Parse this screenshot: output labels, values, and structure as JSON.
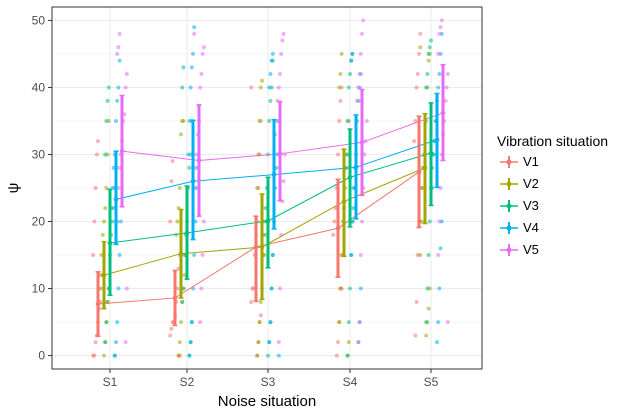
{
  "chart_data": {
    "type": "line",
    "title": "",
    "xlabel": "Noise situation",
    "ylabel": "ψ",
    "categories": [
      "S1",
      "S2",
      "S3",
      "S4",
      "S5"
    ],
    "ylim": [
      -2,
      52
    ],
    "yticks": [
      0,
      10,
      20,
      30,
      40,
      50
    ],
    "grid": true,
    "legend": {
      "title": "Vibration situation",
      "placement": "right"
    },
    "colors": {
      "V1": "#F8766D",
      "V2": "#A3A500",
      "V3": "#00BF7D",
      "V4": "#00B0F6",
      "V5": "#E76BF3",
      "panel_bg": "#FFFFFF",
      "grid": "#EBEBEB",
      "panel_border": "#333333"
    },
    "series": [
      {
        "name": "V1",
        "means": [
          7.7,
          8.6,
          16.2,
          19.0,
          27.4
        ],
        "ci_low": [
          2.9,
          4.5,
          8.1,
          11.7,
          19.1
        ],
        "ci_high": [
          12.5,
          12.7,
          20.8,
          26.3,
          35.7
        ]
      },
      {
        "name": "V2",
        "means": [
          12.0,
          15.2,
          16.2,
          23.0,
          28.0
        ],
        "ci_low": [
          7.0,
          8.6,
          8.4,
          14.8,
          19.7
        ],
        "ci_high": [
          17.0,
          21.8,
          24.1,
          30.8,
          36.1
        ]
      },
      {
        "name": "V3",
        "means": [
          16.8,
          18.3,
          20.1,
          26.6,
          30.2
        ],
        "ci_low": [
          9.0,
          11.4,
          13.1,
          19.2,
          22.4
        ],
        "ci_high": [
          24.8,
          25.3,
          26.6,
          33.8,
          37.7
        ]
      },
      {
        "name": "V4",
        "means": [
          23.3,
          26.0,
          27.0,
          28.1,
          32.2
        ],
        "ci_low": [
          16.6,
          17.3,
          18.9,
          20.4,
          25.1
        ],
        "ci_high": [
          30.5,
          35.1,
          35.2,
          35.9,
          39.1
        ]
      },
      {
        "name": "V5",
        "means": [
          30.5,
          29.1,
          30.1,
          31.8,
          36.2
        ],
        "ci_low": [
          22.2,
          20.8,
          23.1,
          23.9,
          29.1
        ],
        "ci_high": [
          38.8,
          37.4,
          37.9,
          39.7,
          43.4
        ]
      }
    ],
    "raw_points": [
      {
        "series": "V1",
        "x": "S1",
        "values": [
          0,
          0,
          2,
          3,
          5,
          7,
          8,
          10,
          12,
          15,
          20,
          25,
          30,
          32
        ]
      },
      {
        "series": "V1",
        "x": "S2",
        "values": [
          0,
          0,
          3,
          4,
          5,
          5,
          6,
          8,
          10,
          13,
          15,
          20,
          26,
          29
        ]
      },
      {
        "series": "V1",
        "x": "S3",
        "values": [
          0,
          2,
          5,
          6,
          8,
          10,
          10,
          15,
          18,
          20,
          25,
          30,
          35,
          40
        ]
      },
      {
        "series": "V1",
        "x": "S4",
        "values": [
          0,
          2,
          5,
          10,
          10,
          15,
          18,
          20,
          22,
          25,
          30,
          35,
          38,
          40
        ]
      },
      {
        "series": "V1",
        "x": "S5",
        "values": [
          3,
          8,
          15,
          20,
          20,
          25,
          28,
          30,
          32,
          35,
          40,
          42,
          45,
          48
        ]
      },
      {
        "series": "V2",
        "x": "S1",
        "values": [
          0,
          2,
          5,
          8,
          10,
          10,
          12,
          15,
          18,
          20,
          22,
          25,
          30,
          35
        ]
      },
      {
        "series": "V2",
        "x": "S2",
        "values": [
          0,
          2,
          5,
          8,
          10,
          12,
          15,
          18,
          20,
          22,
          25,
          33,
          35,
          35
        ]
      },
      {
        "series": "V2",
        "x": "S3",
        "values": [
          0,
          2,
          5,
          8,
          10,
          15,
          15,
          18,
          20,
          25,
          30,
          35,
          40,
          41
        ]
      },
      {
        "series": "V2",
        "x": "S4",
        "values": [
          0,
          2,
          5,
          10,
          15,
          20,
          22,
          25,
          28,
          30,
          35,
          40,
          42,
          45
        ]
      },
      {
        "series": "V2",
        "x": "S5",
        "values": [
          3,
          5,
          7,
          10,
          15,
          20,
          25,
          28,
          30,
          35,
          40,
          44,
          45,
          46
        ]
      },
      {
        "series": "V3",
        "x": "S1",
        "values": [
          0,
          2,
          5,
          8,
          10,
          15,
          18,
          20,
          22,
          25,
          30,
          35,
          38,
          40
        ]
      },
      {
        "series": "V3",
        "x": "S2",
        "values": [
          0,
          2,
          5,
          8,
          10,
          15,
          18,
          20,
          25,
          28,
          30,
          35,
          40,
          43
        ]
      },
      {
        "series": "V3",
        "x": "S3",
        "values": [
          0,
          2,
          5,
          10,
          15,
          18,
          20,
          22,
          25,
          30,
          35,
          38,
          40,
          44
        ]
      },
      {
        "series": "V3",
        "x": "S4",
        "values": [
          0,
          5,
          10,
          15,
          20,
          22,
          25,
          28,
          30,
          35,
          40,
          42,
          44,
          45
        ]
      },
      {
        "series": "V3",
        "x": "S5",
        "values": [
          5,
          10,
          15,
          20,
          25,
          28,
          30,
          32,
          35,
          40,
          42,
          45,
          46,
          47
        ]
      },
      {
        "series": "V4",
        "x": "S1",
        "values": [
          0,
          2,
          5,
          10,
          15,
          20,
          22,
          25,
          28,
          30,
          35,
          38,
          40,
          44
        ]
      },
      {
        "series": "V4",
        "x": "S2",
        "values": [
          0,
          2,
          5,
          10,
          15,
          20,
          25,
          28,
          30,
          35,
          40,
          43,
          45,
          49
        ]
      },
      {
        "series": "V4",
        "x": "S3",
        "values": [
          0,
          2,
          5,
          10,
          15,
          20,
          25,
          28,
          30,
          35,
          40,
          42,
          44,
          45
        ]
      },
      {
        "series": "V4",
        "x": "S4",
        "values": [
          2,
          5,
          10,
          15,
          20,
          25,
          28,
          30,
          35,
          38,
          40,
          42,
          44,
          45
        ]
      },
      {
        "series": "V4",
        "x": "S5",
        "values": [
          2,
          5,
          10,
          16,
          20,
          25,
          30,
          32,
          35,
          38,
          40,
          42,
          45,
          48
        ]
      },
      {
        "series": "V5",
        "x": "S1",
        "values": [
          2,
          10,
          20,
          25,
          28,
          30,
          32,
          35,
          36,
          40,
          42,
          45,
          46,
          48
        ]
      },
      {
        "series": "V5",
        "x": "S2",
        "values": [
          5,
          10,
          15,
          20,
          25,
          28,
          30,
          33,
          35,
          40,
          42,
          45,
          46,
          48
        ]
      },
      {
        "series": "V5",
        "x": "S3",
        "values": [
          2,
          10,
          18,
          23,
          26,
          30,
          33,
          35,
          38,
          40,
          42,
          45,
          47,
          48
        ]
      },
      {
        "series": "V5",
        "x": "S4",
        "values": [
          2,
          5,
          15,
          20,
          25,
          30,
          32,
          35,
          38,
          40,
          42,
          45,
          48,
          50
        ]
      },
      {
        "series": "V5",
        "x": "S5",
        "values": [
          5,
          15,
          20,
          25,
          30,
          33,
          35,
          38,
          40,
          42,
          45,
          48,
          49,
          50
        ]
      }
    ]
  }
}
